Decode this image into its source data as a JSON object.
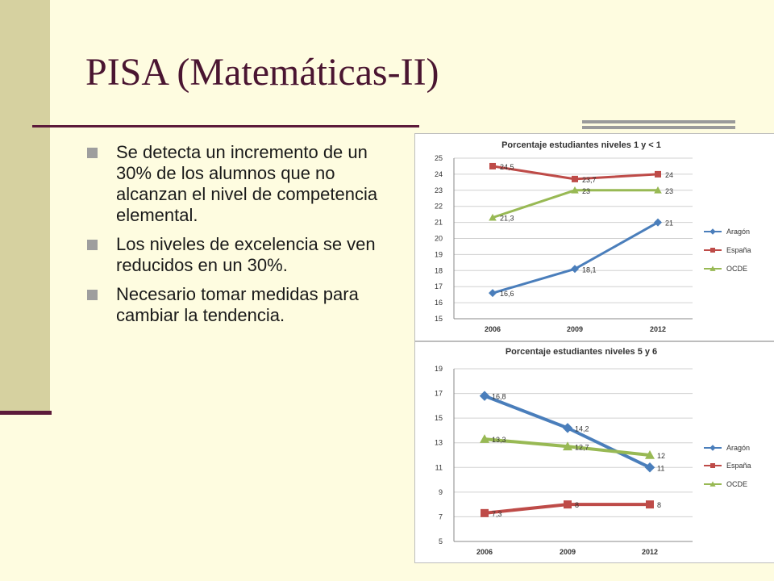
{
  "slide": {
    "title": "PISA (Matemáticas-II)",
    "bullets": [
      "Se detecta un incremento de un 30% de los alumnos que no alcanzan el nivel de competencia elemental.",
      "Los niveles de excelencia se ven reducidos en un 30%.",
      "Necesario tomar medidas para cambiar la tendencia."
    ]
  },
  "chart_data": [
    {
      "type": "line",
      "title": "Porcentaje estudiantes niveles 1 y < 1",
      "categories": [
        "2006",
        "2009",
        "2012"
      ],
      "ylim": [
        15,
        25
      ],
      "yticks": [
        15,
        16,
        17,
        18,
        19,
        20,
        21,
        22,
        23,
        24,
        25
      ],
      "grid": true,
      "legend": "right",
      "series": [
        {
          "name": "Aragón",
          "values": [
            16.6,
            18.1,
            21
          ],
          "labels": [
            "16,6",
            "18,1",
            "21"
          ],
          "color": "#4a7ebb",
          "marker": "diamond"
        },
        {
          "name": "España",
          "values": [
            24.5,
            23.7,
            24
          ],
          "labels": [
            "24,5",
            "23,7",
            "24"
          ],
          "color": "#be4b48",
          "marker": "square"
        },
        {
          "name": "OCDE",
          "values": [
            21.3,
            23,
            23
          ],
          "labels": [
            "21,3",
            "23",
            "23"
          ],
          "color": "#98b954",
          "marker": "triangle"
        }
      ]
    },
    {
      "type": "line",
      "title": "Porcentaje estudiantes niveles 5 y 6",
      "categories": [
        "2006",
        "2009",
        "2012"
      ],
      "ylim": [
        5,
        19
      ],
      "yticks": [
        5,
        7,
        9,
        11,
        13,
        15,
        17,
        19
      ],
      "grid": true,
      "legend": "right",
      "series": [
        {
          "name": "Aragón",
          "values": [
            16.8,
            14.2,
            11
          ],
          "labels": [
            "16,8",
            "14,2",
            "11"
          ],
          "color": "#4a7ebb",
          "marker": "diamond"
        },
        {
          "name": "España",
          "values": [
            7.3,
            8,
            8
          ],
          "labels": [
            "7,3",
            "8",
            "8"
          ],
          "color": "#be4b48",
          "marker": "square"
        },
        {
          "name": "OCDE",
          "values": [
            13.3,
            12.7,
            12
          ],
          "labels": [
            "13,3",
            "12,7",
            "12"
          ],
          "color": "#98b954",
          "marker": "triangle"
        }
      ]
    }
  ]
}
